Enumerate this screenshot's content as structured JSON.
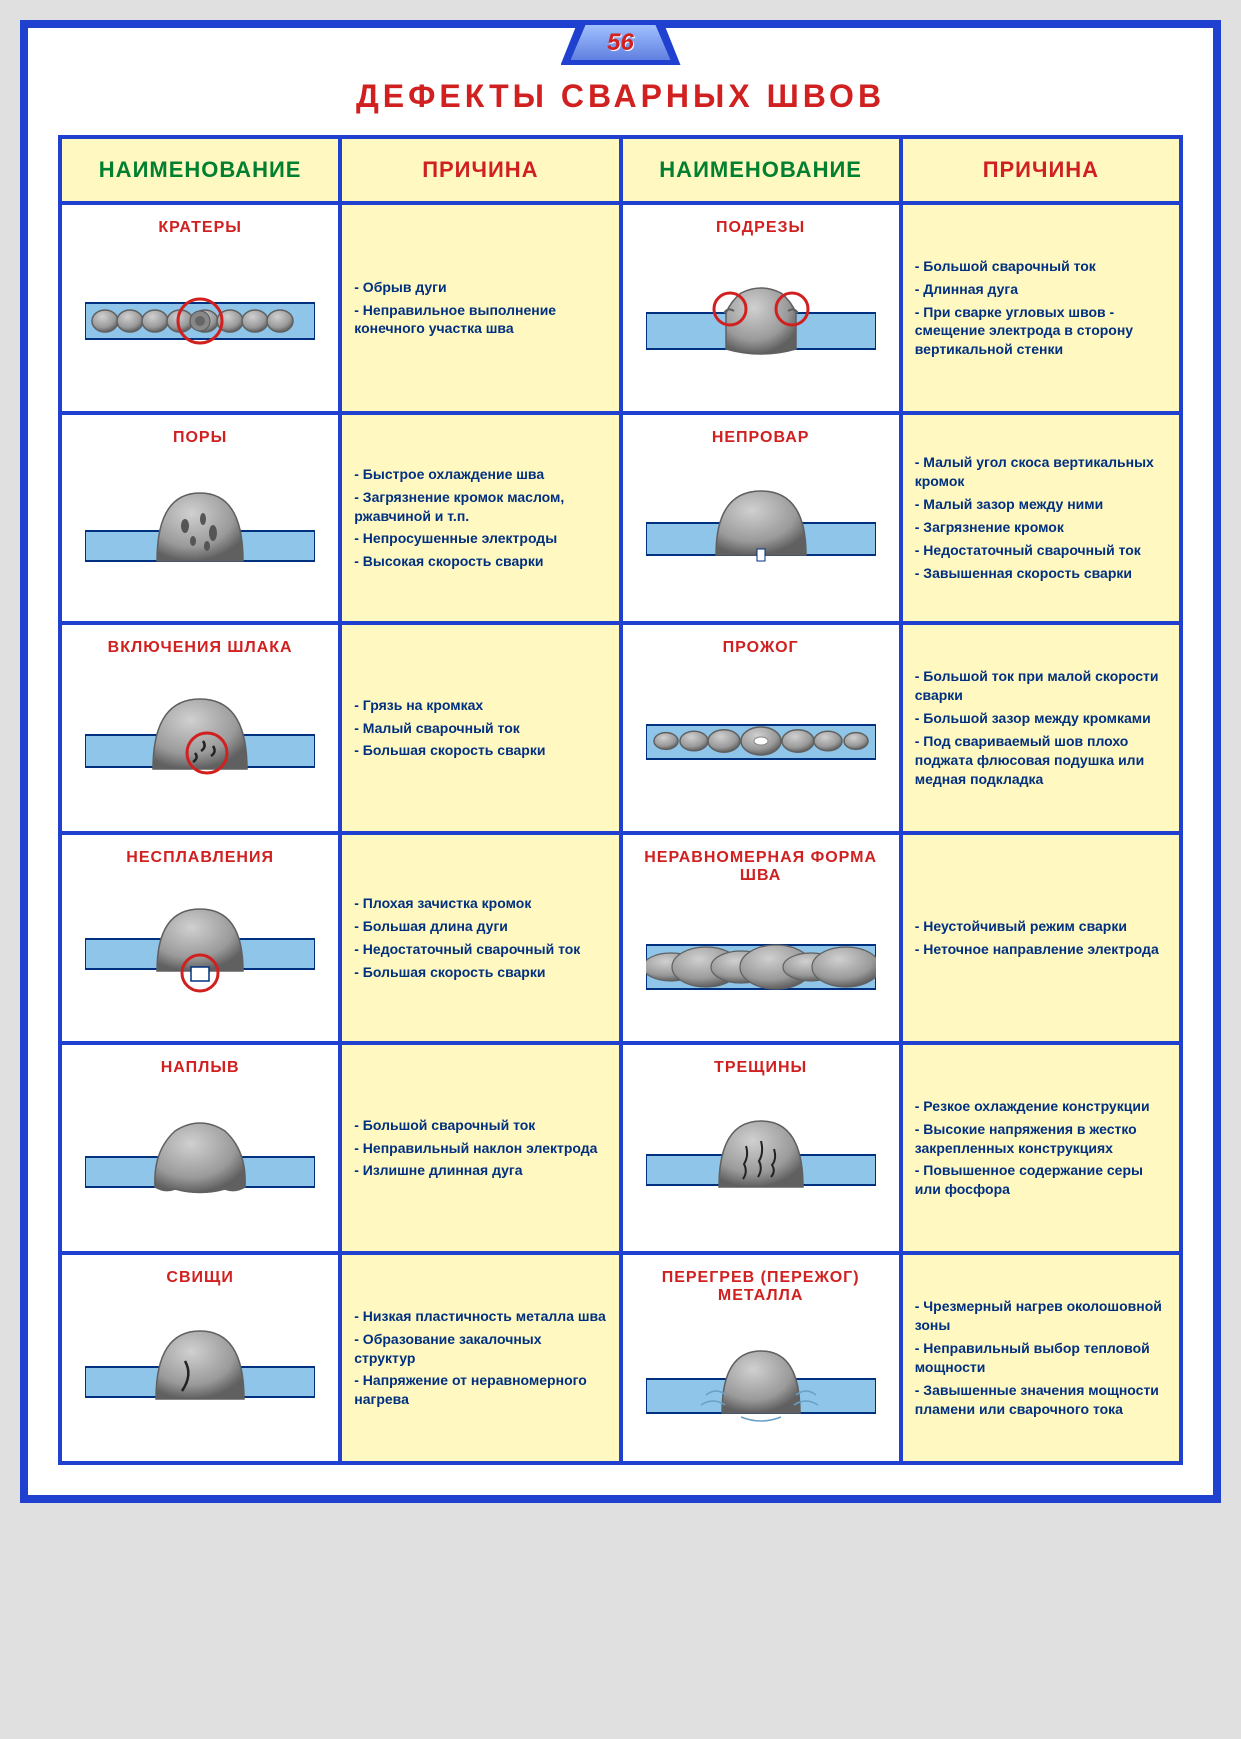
{
  "page_number": "56",
  "main_title": "ДЕФЕКТЫ СВАРНЫХ ШВОВ",
  "headers": {
    "name": "НАИМЕНОВАНИЕ",
    "cause": "ПРИЧИНА"
  },
  "colors": {
    "frame": "#2040d0",
    "title_red": "#d02020",
    "header_green": "#008030",
    "cause_bg": "#fff8c0",
    "cause_text": "#003080",
    "plate_fill": "#8ec5e8",
    "plate_stroke": "#003080",
    "weld_gray": "#9a9a9a",
    "weld_dark": "#606060",
    "highlight_red": "#d02020"
  },
  "defects": [
    {
      "name": "КРАТЕРЫ",
      "diagram": "kratery",
      "causes": [
        "- Обрыв дуги",
        "- Неправильное выполнение конечного участка шва"
      ]
    },
    {
      "name": "ПОДРЕЗЫ",
      "diagram": "podrezy",
      "causes": [
        "- Большой сварочный ток",
        "- Длинная дуга",
        "- При сварке угловых швов - смещение электрода в сторону вертикальной стенки"
      ]
    },
    {
      "name": "ПОРЫ",
      "diagram": "pory",
      "causes": [
        "- Быстрое охлаждение шва",
        "- Загрязнение кромок маслом, ржавчиной и т.п.",
        "- Непросушенные электроды",
        "- Высокая скорость сварки"
      ]
    },
    {
      "name": "НЕПРОВАР",
      "diagram": "neprovar",
      "causes": [
        "- Малый угол скоса вертикальных кромок",
        "- Малый зазор между ними",
        "- Загрязнение кромок",
        "- Недостаточный сварочный ток",
        "- Завышенная скорость сварки"
      ]
    },
    {
      "name": "ВКЛЮЧЕНИЯ ШЛАКА",
      "diagram": "shlak",
      "causes": [
        "- Грязь на кромках",
        "- Малый сварочный ток",
        "- Большая скорость сварки"
      ]
    },
    {
      "name": "ПРОЖОГ",
      "diagram": "prozhog",
      "causes": [
        "- Большой ток при малой скорости сварки",
        "- Большой зазор между кромками",
        "- Под свариваемый шов плохо поджата флюсовая подушка или медная подкладка"
      ]
    },
    {
      "name": "НЕСПЛАВЛЕНИЯ",
      "diagram": "nesplavlenia",
      "causes": [
        "- Плохая зачистка кромок",
        "- Большая длина дуги",
        "- Недостаточный сварочный ток",
        "- Большая скорость сварки"
      ]
    },
    {
      "name": "НЕРАВНОМЕРНАЯ ФОРМА ШВА",
      "diagram": "neravnomernaya",
      "causes": [
        "- Неустойчивый режим сварки",
        "- Неточное направление электрода"
      ]
    },
    {
      "name": "НАПЛЫВ",
      "diagram": "naplyv",
      "causes": [
        "- Большой сварочный ток",
        "- Неправильный наклон электрода",
        "- Излишне длинная дуга"
      ]
    },
    {
      "name": "ТРЕЩИНЫ",
      "diagram": "treshiny",
      "causes": [
        "- Резкое охлаждение конструкции",
        "- Высокие напряжения в жестко закрепленных конструкциях",
        "- Повышенное содержание серы или фосфора"
      ]
    },
    {
      "name": "СВИЩИ",
      "diagram": "svishi",
      "causes": [
        "- Низкая пластичность металла шва",
        "- Образование закалочных структур",
        "- Напряжение от неравномерного нагрева"
      ]
    },
    {
      "name": "ПЕРЕГРЕВ (ПЕРЕЖОГ) МЕТАЛЛА",
      "diagram": "peregrev",
      "causes": [
        "- Чрезмерный нагрев околошовной зоны",
        "- Неправильный выбор тепловой мощности",
        "- Завышенные значения мощности пламени или сварочного тока"
      ]
    }
  ]
}
